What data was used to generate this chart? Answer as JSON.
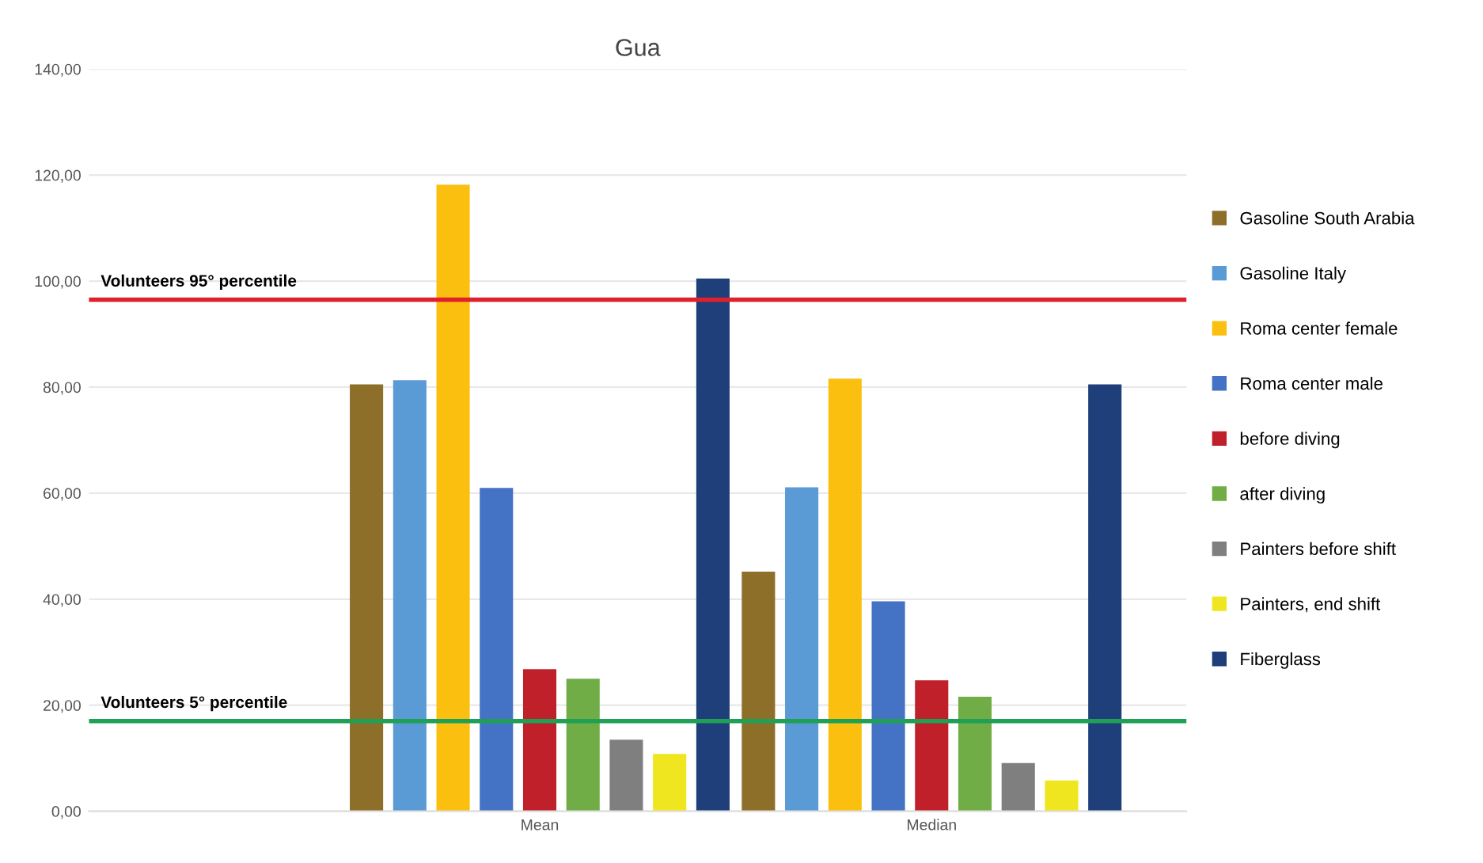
{
  "chart_data": {
    "type": "bar",
    "title": "Gua",
    "categories": [
      "Mean",
      "Median"
    ],
    "series": [
      {
        "name": "Gasoline South Arabia",
        "color": "#8e6f2a",
        "values": [
          80.5,
          45.2
        ]
      },
      {
        "name": "Gasoline Italy",
        "color": "#5b9bd5",
        "values": [
          81.3,
          61.1
        ]
      },
      {
        "name": "Roma center female",
        "color": "#fbbf10",
        "values": [
          118.2,
          81.6
        ]
      },
      {
        "name": "Roma center male",
        "color": "#4472c4",
        "values": [
          61.0,
          39.6
        ]
      },
      {
        "name": "before diving",
        "color": "#c0202a",
        "values": [
          26.8,
          24.7
        ]
      },
      {
        "name": "after diving",
        "color": "#70ad47",
        "values": [
          25.0,
          21.6
        ]
      },
      {
        "name": "Painters before shift",
        "color": "#7f7f7f",
        "values": [
          13.5,
          9.1
        ]
      },
      {
        "name": "Painters, end shift",
        "color": "#f0e620",
        "values": [
          10.8,
          5.8
        ]
      },
      {
        "name": "Fiberglass",
        "color": "#1f3f7a",
        "values": [
          100.5,
          80.5
        ]
      }
    ],
    "ylim": [
      0,
      140
    ],
    "yticks": [
      {
        "value": 0,
        "label": "0,00"
      },
      {
        "value": 20,
        "label": "20,00"
      },
      {
        "value": 40,
        "label": "40,00"
      },
      {
        "value": 60,
        "label": "60,00"
      },
      {
        "value": 80,
        "label": "80,00"
      },
      {
        "value": 100,
        "label": "100,00"
      },
      {
        "value": 120,
        "label": "120,00"
      },
      {
        "value": 140,
        "label": "140,00"
      }
    ],
    "grid": "y",
    "legend": "right",
    "ref_lines": [
      {
        "axis": "y",
        "value": 96.5,
        "label": "Volunteers 95° percentile",
        "color": "#e0202a"
      },
      {
        "axis": "y",
        "value": 17.0,
        "label": "Volunteers 5° percentile",
        "color": "#1fa055"
      }
    ]
  }
}
